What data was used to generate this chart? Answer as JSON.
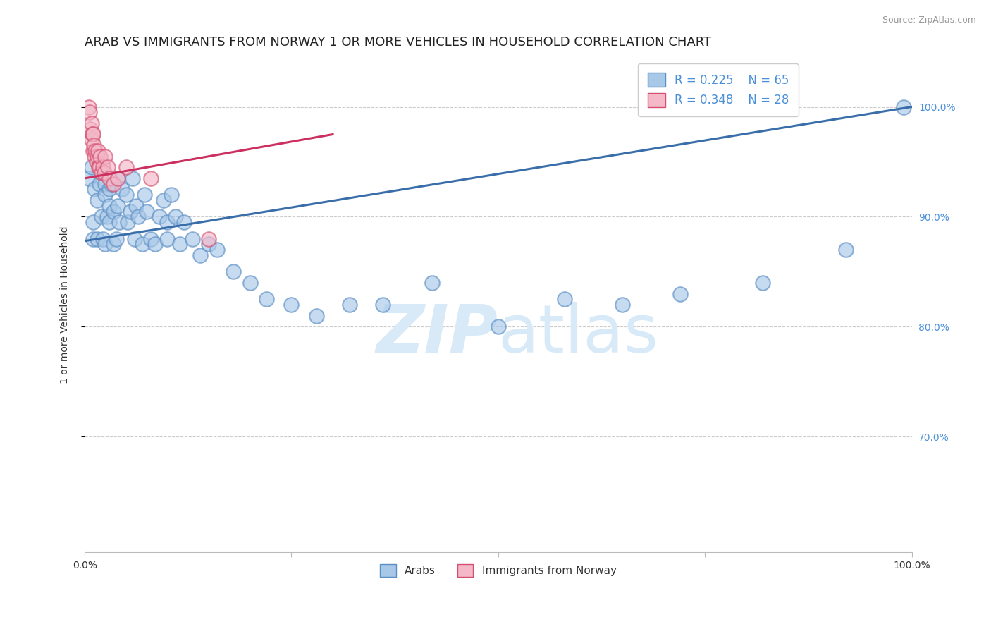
{
  "title": "ARAB VS IMMIGRANTS FROM NORWAY 1 OR MORE VEHICLES IN HOUSEHOLD CORRELATION CHART",
  "source_text": "Source: ZipAtlas.com",
  "ylabel": "1 or more Vehicles in Household",
  "xmin": 0.0,
  "xmax": 1.0,
  "ymin": 0.595,
  "ymax": 1.045,
  "yticks": [
    0.7,
    0.8,
    0.9,
    1.0
  ],
  "ytick_labels": [
    "70.0%",
    "80.0%",
    "90.0%",
    "100.0%"
  ],
  "xticks": [
    0.0,
    0.25,
    0.5,
    0.75,
    1.0
  ],
  "xtick_labels": [
    "0.0%",
    "",
    "",
    "",
    "100.0%"
  ],
  "legend_r_arab": "R = 0.225",
  "legend_n_arab": "N = 65",
  "legend_r_norway": "R = 0.348",
  "legend_n_norway": "N = 28",
  "arab_color": "#a8c8e8",
  "norway_color": "#f4b8c8",
  "arab_edge_color": "#5b8ec4",
  "norway_edge_color": "#d45070",
  "arab_line_color": "#3a6eaa",
  "norway_line_color": "#cc3060",
  "background_color": "#ffffff",
  "title_fontsize": 13,
  "axis_label_fontsize": 10,
  "tick_fontsize": 10,
  "right_tick_color": "#4a90d9",
  "watermark_color": "#d8eaf8",
  "arab_x": [
    0.005,
    0.008,
    0.01,
    0.01,
    0.012,
    0.015,
    0.015,
    0.018,
    0.02,
    0.02,
    0.022,
    0.025,
    0.025,
    0.025,
    0.027,
    0.03,
    0.03,
    0.03,
    0.032,
    0.035,
    0.035,
    0.038,
    0.04,
    0.04,
    0.042,
    0.045,
    0.05,
    0.052,
    0.055,
    0.058,
    0.06,
    0.062,
    0.065,
    0.07,
    0.072,
    0.075,
    0.08,
    0.085,
    0.09,
    0.095,
    0.1,
    0.1,
    0.105,
    0.11,
    0.115,
    0.12,
    0.13,
    0.14,
    0.15,
    0.16,
    0.18,
    0.2,
    0.22,
    0.25,
    0.28,
    0.32,
    0.36,
    0.42,
    0.5,
    0.58,
    0.65,
    0.72,
    0.82,
    0.92,
    0.99
  ],
  "arab_y": [
    0.935,
    0.945,
    0.88,
    0.895,
    0.925,
    0.915,
    0.88,
    0.93,
    0.94,
    0.9,
    0.88,
    0.93,
    0.92,
    0.875,
    0.9,
    0.925,
    0.91,
    0.895,
    0.93,
    0.905,
    0.875,
    0.88,
    0.935,
    0.91,
    0.895,
    0.925,
    0.92,
    0.895,
    0.905,
    0.935,
    0.88,
    0.91,
    0.9,
    0.875,
    0.92,
    0.905,
    0.88,
    0.875,
    0.9,
    0.915,
    0.88,
    0.895,
    0.92,
    0.9,
    0.875,
    0.895,
    0.88,
    0.865,
    0.875,
    0.87,
    0.85,
    0.84,
    0.825,
    0.82,
    0.81,
    0.82,
    0.82,
    0.84,
    0.8,
    0.825,
    0.82,
    0.83,
    0.84,
    0.87,
    1.0
  ],
  "norway_x": [
    0.005,
    0.006,
    0.007,
    0.008,
    0.008,
    0.009,
    0.01,
    0.01,
    0.011,
    0.012,
    0.013,
    0.014,
    0.015,
    0.016,
    0.017,
    0.018,
    0.019,
    0.02,
    0.022,
    0.024,
    0.025,
    0.028,
    0.03,
    0.035,
    0.04,
    0.05,
    0.08,
    0.15
  ],
  "norway_y": [
    1.0,
    0.995,
    0.98,
    0.985,
    0.97,
    0.975,
    0.975,
    0.96,
    0.965,
    0.955,
    0.96,
    0.95,
    0.955,
    0.96,
    0.945,
    0.945,
    0.955,
    0.94,
    0.945,
    0.94,
    0.955,
    0.945,
    0.935,
    0.93,
    0.935,
    0.945,
    0.935,
    0.88
  ],
  "arab_line_start_x": 0.0,
  "arab_line_start_y": 0.878,
  "arab_line_end_x": 1.0,
  "arab_line_end_y": 1.0,
  "norway_line_start_x": 0.0,
  "norway_line_start_y": 0.935,
  "norway_line_end_x": 0.3,
  "norway_line_end_y": 0.975
}
